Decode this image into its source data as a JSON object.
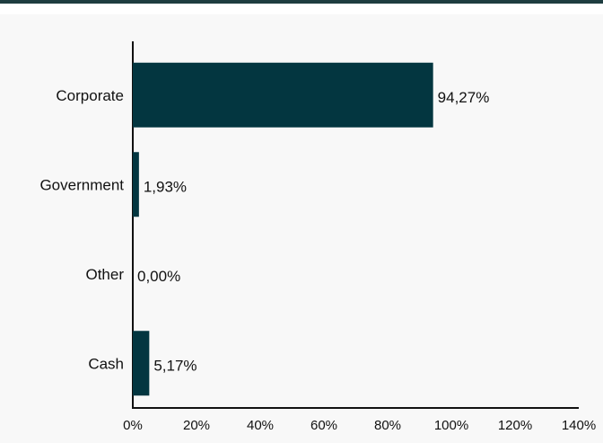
{
  "chart_data": {
    "type": "bar",
    "orientation": "horizontal",
    "categories": [
      "Corporate",
      "Government",
      "Other",
      "Cash"
    ],
    "values": [
      94.27,
      1.93,
      0.0,
      5.17
    ],
    "value_labels": [
      "94,27%",
      "1,93%",
      "0,00%",
      "5,17%"
    ],
    "xlim": [
      0,
      140
    ],
    "x_ticks": [
      0,
      20,
      40,
      60,
      80,
      100,
      120,
      140
    ],
    "x_tick_labels": [
      "0%",
      "20%",
      "40%",
      "60%",
      "80%",
      "100%",
      "120%",
      "140%"
    ],
    "grid": false,
    "legend": "none",
    "bar_color": "#033640"
  },
  "colors": {
    "top_rule": "#1e3d40",
    "background": "#f8f8f8"
  }
}
